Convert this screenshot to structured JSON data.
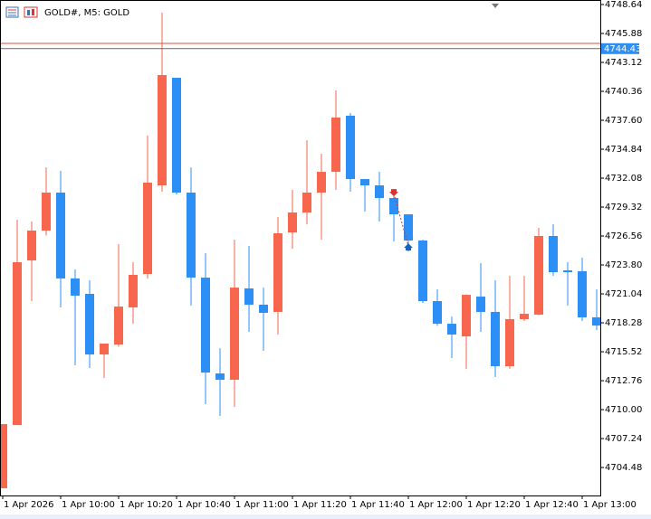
{
  "chart_data": {
    "type": "candlestick",
    "title": "GOLD#, M5:  GOLD",
    "categories": [
      "1 Apr 2026",
      null,
      null,
      null,
      "1 Apr 10:00",
      null,
      null,
      null,
      "1 Apr 10:20",
      null,
      null,
      null,
      "1 Apr 10:40",
      null,
      null,
      null,
      "1 Apr 11:00",
      null,
      null,
      null,
      "1 Apr 11:20",
      null,
      null,
      null,
      "1 Apr 11:40",
      null,
      null,
      null,
      "1 Apr 12:00",
      null,
      null,
      null,
      "1 Apr 12:20",
      null,
      null,
      null,
      "1 Apr 12:40",
      null,
      null,
      null,
      "1 Apr 13:00",
      null
    ],
    "open": [
      4702.5,
      4708.53,
      4724.23,
      4727.08,
      4730.7,
      4722.51,
      4721.04,
      4715.26,
      4716.21,
      4719.75,
      4722.94,
      4731.39,
      4741.65,
      4730.7,
      4722.59,
      4713.45,
      4712.85,
      4721.56,
      4720.01,
      4719.32,
      4726.9,
      4728.8,
      4730.7,
      4732.68,
      4738.03,
      4731.99,
      4731.39,
      4730.18,
      4728.63,
      4726.13,
      4720.35,
      4718.19,
      4716.99,
      4720.78,
      4719.32,
      4714.14,
      4718.63,
      4719.06,
      4726.56,
      4723.28,
      4723.2,
      4718.8
    ],
    "high": [
      4708.62,
      4728.11,
      4727.94,
      4733.11,
      4732.77,
      4723.37,
      4722.33,
      4716.3,
      4725.78,
      4724.06,
      4736.13,
      4747.86,
      4741.65,
      4733.11,
      4724.92,
      4715.86,
      4726.21,
      4725.61,
      4721.64,
      4728.37,
      4730.96,
      4735.7,
      4734.41,
      4740.45,
      4738.29,
      4731.99,
      4732.68,
      4730.53,
      4728.63,
      4726.21,
      4721.47,
      4718.88,
      4721.0,
      4723.97,
      4722.33,
      4722.76,
      4722.76,
      4727.34,
      4727.68,
      4724.06,
      4724.49,
      4721.47
    ],
    "low": [
      4702.5,
      4708.53,
      4720.35,
      4726.6,
      4719.75,
      4714.23,
      4713.97,
      4713.02,
      4716.0,
      4718.19,
      4722.5,
      4730.79,
      4730.53,
      4719.92,
      4710.52,
      4709.4,
      4710.26,
      4717.42,
      4715.61,
      4717.16,
      4725.35,
      4727.68,
      4726.21,
      4730.96,
      4730.79,
      4728.89,
      4727.94,
      4726.04,
      4725.09,
      4720.18,
      4718.0,
      4714.92,
      4713.88,
      4717.42,
      4713.11,
      4713.88,
      4718.45,
      4719.0,
      4722.76,
      4719.92,
      4718.45,
      4717.59
    ],
    "close": [
      4708.62,
      4724.06,
      4727.08,
      4730.7,
      4722.51,
      4720.87,
      4715.26,
      4716.3,
      4719.83,
      4722.85,
      4731.65,
      4741.91,
      4730.7,
      4722.59,
      4713.54,
      4712.85,
      4721.64,
      4720.01,
      4719.23,
      4726.82,
      4728.8,
      4730.7,
      4732.68,
      4737.86,
      4731.99,
      4731.39,
      4730.18,
      4728.63,
      4726.13,
      4720.35,
      4718.19,
      4717.16,
      4720.95,
      4719.32,
      4714.14,
      4718.63,
      4719.14,
      4726.56,
      4723.11,
      4723.11,
      4718.8,
      4718.02
    ],
    "up_color": "#f7664d",
    "down_color": "#2b8ff5",
    "bid": 4744.43,
    "bid_color": "#2b8ff5",
    "ask": 4744.93,
    "ask_color": "#e0503a",
    "trades": [
      {
        "index": 27,
        "value": 4730.6,
        "color": "#e0302a"
      },
      {
        "index": 28,
        "value": 4725.6,
        "color": "#1565c0"
      }
    ],
    "ylim": [
      4701.81,
      4749.07
    ],
    "yticks": [
      4748.64,
      4745.88,
      4743.12,
      4740.36,
      {
        "value": 4737.6,
        "label": "4737.60"
      },
      4734.84,
      4732.08,
      4729.32,
      4726.56,
      {
        "value": 4723.8,
        "label": "4723.80"
      },
      4721.04,
      4718.28,
      4715.52,
      4712.76,
      {
        "value": 4710.0,
        "label": "4710.00"
      },
      4707.24,
      4704.48
    ]
  }
}
